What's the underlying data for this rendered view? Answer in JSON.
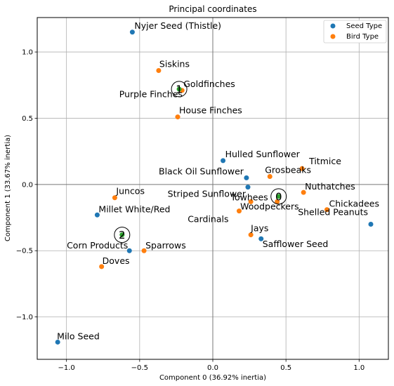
{
  "chart_data": {
    "type": "scatter",
    "title": "Principal coordinates",
    "xlabel": "Component 0 (36.92% inertia)",
    "ylabel": "Component 1 (33.67% inertia)",
    "xlim": [
      -1.2,
      1.2
    ],
    "ylim": [
      -1.32,
      1.26
    ],
    "xticks": [
      -1.0,
      -0.5,
      0.0,
      0.5,
      1.0
    ],
    "xtick_labels": [
      "−1.0",
      "−0.5",
      "0.0",
      "0.5",
      "1.0"
    ],
    "yticks": [
      -1.0,
      -0.5,
      0.0,
      0.5,
      1.0
    ],
    "ytick_labels": [
      "−1.0",
      "−0.5",
      "0.0",
      "0.5",
      "1.0"
    ],
    "grid": true,
    "legend_position": "top-right",
    "series": [
      {
        "name": "Seed Type",
        "color": "#1f77b4",
        "points": [
          {
            "label": "Nyjer Seed (Thistle)",
            "x": -0.55,
            "y": 1.15
          },
          {
            "label": "Hulled Sunflower",
            "x": 0.07,
            "y": 0.18
          },
          {
            "label": "Black Oil Sunflower",
            "x": 0.23,
            "y": 0.05
          },
          {
            "label": "Striped Sunflower",
            "x": 0.24,
            "y": -0.02
          },
          {
            "label": "Millet White/Red",
            "x": -0.79,
            "y": -0.23
          },
          {
            "label": "Corn Products",
            "x": -0.57,
            "y": -0.5
          },
          {
            "label": "Safflower Seed",
            "x": 0.33,
            "y": -0.41
          },
          {
            "label": "Shelled Peanuts",
            "x": 1.08,
            "y": -0.3
          },
          {
            "label": "Milo Seed",
            "x": -1.06,
            "y": -1.19
          }
        ]
      },
      {
        "name": "Bird Type",
        "color": "#ff7f0e",
        "points": [
          {
            "label": "Siskins",
            "x": -0.37,
            "y": 0.86
          },
          {
            "label": "Goldfinches",
            "x": -0.21,
            "y": 0.71
          },
          {
            "label": "House Finches",
            "x": -0.24,
            "y": 0.51
          },
          {
            "label": "Titmice",
            "x": 0.61,
            "y": 0.12
          },
          {
            "label": "Grosbeaks",
            "x": 0.39,
            "y": 0.06
          },
          {
            "label": "Nuthatches",
            "x": 0.62,
            "y": -0.06
          },
          {
            "label": "Towhees",
            "x": 0.44,
            "y": -0.13
          },
          {
            "label": "Woodpeckers",
            "x": 0.26,
            "y": -0.13
          },
          {
            "label": "Cardinals",
            "x": 0.18,
            "y": -0.2
          },
          {
            "label": "Chickadees",
            "x": 0.78,
            "y": -0.19
          },
          {
            "label": "Jays",
            "x": 0.26,
            "y": -0.38
          },
          {
            "label": "Juncos",
            "x": -0.67,
            "y": -0.1
          },
          {
            "label": "Sparrows",
            "x": -0.47,
            "y": -0.5
          },
          {
            "label": "Doves",
            "x": -0.76,
            "y": -0.62
          },
          {
            "label": "Purple Finches",
            "x": -0.25,
            "y": 0.7
          }
        ]
      }
    ],
    "clusters": [
      {
        "label": "0",
        "color": "#2ca02c",
        "x": 0.45,
        "y": -0.09
      },
      {
        "label": "1",
        "color": "#2ca02c",
        "x": -0.23,
        "y": 0.72
      },
      {
        "label": "2",
        "color": "#2ca02c",
        "x": -0.62,
        "y": -0.38
      }
    ]
  }
}
